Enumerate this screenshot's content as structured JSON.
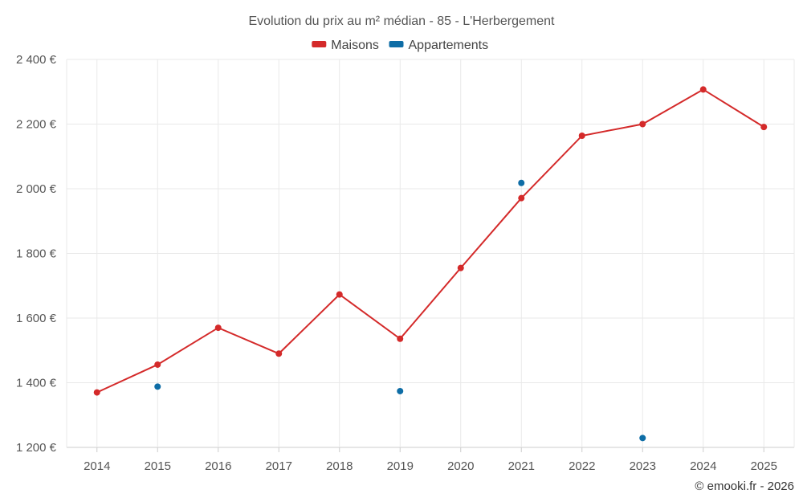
{
  "chart_data": {
    "type": "line",
    "title": "Evolution du prix au m² médian - 85 - L'Herbergement",
    "categories": [
      "2014",
      "2015",
      "2016",
      "2017",
      "2018",
      "2019",
      "2020",
      "2021",
      "2022",
      "2023",
      "2024",
      "2025"
    ],
    "series": [
      {
        "name": "Maisons",
        "color": "#d42a2a",
        "style": "line-markers",
        "values": [
          1370,
          1456,
          1570,
          1490,
          1673,
          1536,
          1755,
          1971,
          2164,
          2200,
          2307,
          2191
        ]
      },
      {
        "name": "Appartements",
        "color": "#0e6da6",
        "style": "markers",
        "values": [
          null,
          1388,
          null,
          null,
          null,
          1374,
          null,
          2018,
          null,
          1229,
          null,
          null
        ]
      }
    ],
    "ylim": [
      1200,
      2400
    ],
    "yticks": [
      1200,
      1400,
      1600,
      1800,
      2000,
      2200,
      2400
    ],
    "ytick_labels": [
      "1 200 €",
      "1 400 €",
      "1 600 €",
      "1 800 €",
      "2 000 €",
      "2 200 €",
      "2 400 €"
    ],
    "xlabel": "",
    "ylabel": "",
    "legend_position": "top-center",
    "grid": true
  },
  "credit": "© emooki.fr - 2026"
}
